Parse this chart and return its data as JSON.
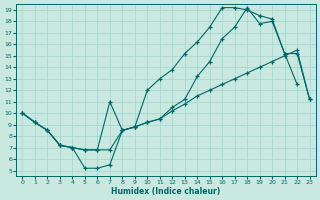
{
  "xlabel": "Humidex (Indice chaleur)",
  "bg_color": "#c8e8e0",
  "grid_color": "#a8d8d0",
  "line_color": "#006868",
  "xlim": [
    -0.5,
    23.5
  ],
  "ylim": [
    4.5,
    19.5
  ],
  "xticks": [
    0,
    1,
    2,
    3,
    4,
    5,
    6,
    7,
    8,
    9,
    10,
    11,
    12,
    13,
    14,
    15,
    16,
    17,
    18,
    19,
    20,
    21,
    22,
    23
  ],
  "yticks": [
    5,
    6,
    7,
    8,
    9,
    10,
    11,
    12,
    13,
    14,
    15,
    16,
    17,
    18,
    19
  ],
  "line_A_x": [
    0,
    1,
    2,
    3,
    4,
    5,
    6,
    7,
    8,
    9,
    10,
    11,
    12,
    13,
    14,
    15,
    16,
    17,
    18,
    19,
    20,
    21,
    22
  ],
  "line_A_y": [
    10,
    9.2,
    8.5,
    7.2,
    7.0,
    6.8,
    6.8,
    11.0,
    8.5,
    8.8,
    12.0,
    13.0,
    13.8,
    15.2,
    16.2,
    17.5,
    19.2,
    19.2,
    19.0,
    18.5,
    18.2,
    15.2,
    12.5
  ],
  "line_B_x": [
    0,
    1,
    2,
    3,
    4,
    5,
    6,
    7,
    8,
    9,
    10,
    11,
    12,
    13,
    14,
    15,
    16,
    17,
    18,
    19,
    20,
    21,
    22,
    23
  ],
  "line_B_y": [
    10,
    9.2,
    8.5,
    7.2,
    7.0,
    6.8,
    6.8,
    6.8,
    8.5,
    8.8,
    9.2,
    9.5,
    10.5,
    11.2,
    13.2,
    14.5,
    16.5,
    17.5,
    19.2,
    17.8,
    18.0,
    15.2,
    15.2,
    11.2
  ],
  "line_C_x": [
    0,
    1,
    2,
    3,
    4,
    5,
    6,
    7,
    8,
    9,
    10,
    11,
    12,
    13,
    14,
    15,
    16,
    17,
    18,
    19,
    20,
    21,
    22,
    23
  ],
  "line_C_y": [
    10,
    9.2,
    8.5,
    7.2,
    7.0,
    5.2,
    5.2,
    5.5,
    8.5,
    8.8,
    9.2,
    9.5,
    10.2,
    10.8,
    11.5,
    12.0,
    12.5,
    13.0,
    13.5,
    14.0,
    14.5,
    15.0,
    15.5,
    11.2
  ]
}
